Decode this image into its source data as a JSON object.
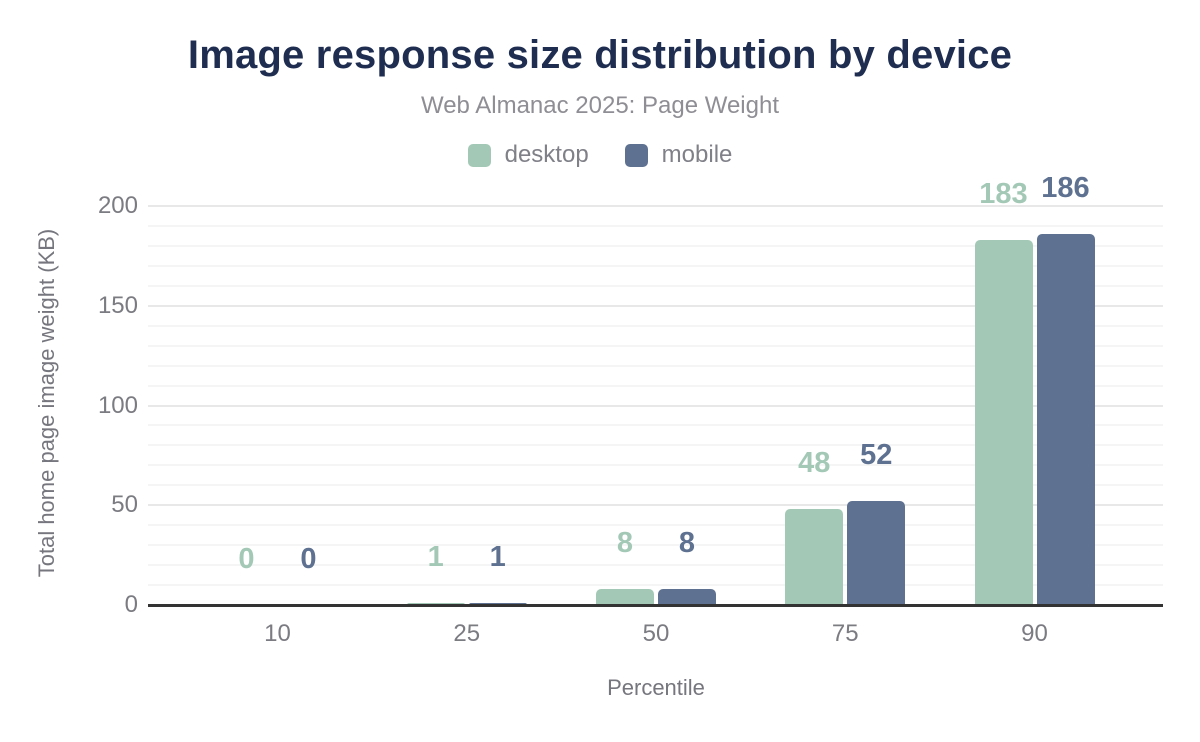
{
  "chart_data": {
    "type": "bar",
    "title": "Image response size distribution by device",
    "subtitle": "Web Almanac 2025: Page Weight",
    "xlabel": "Percentile",
    "ylabel": "Total home page image weight (KB)",
    "categories": [
      "10",
      "25",
      "50",
      "75",
      "90"
    ],
    "series": [
      {
        "name": "desktop",
        "color": "#a3c9b6",
        "values": [
          0,
          1,
          8,
          48,
          183
        ]
      },
      {
        "name": "mobile",
        "color": "#5e7190",
        "values": [
          0,
          1,
          8,
          52,
          186
        ]
      }
    ],
    "data_labels": true,
    "y_ticks": [
      "0",
      "50",
      "100",
      "150",
      "200"
    ],
    "ylim": [
      0,
      200
    ],
    "ytick_step": 50,
    "minor_step": 10,
    "grid": true,
    "legend_position": "top"
  },
  "colors": {
    "title": "#1e2d50",
    "subtitle": "#8e8e94",
    "legend_text": "#808089",
    "axis_text": "#7b7b82",
    "axis_title_text": "#76767e",
    "axis_line": "#333333",
    "grid_major": "#e8e8e8",
    "grid_minor": "#f5f5f5",
    "background": "#ffffff"
  }
}
